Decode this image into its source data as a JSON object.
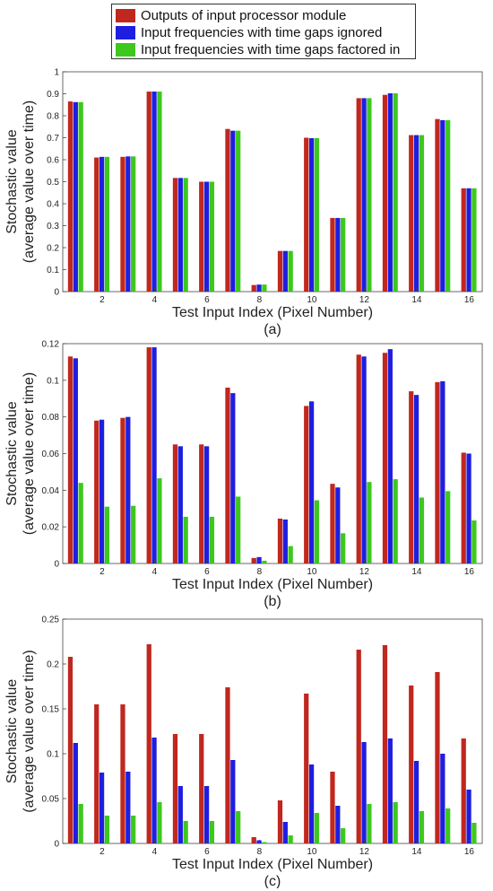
{
  "legend": {
    "entries": [
      {
        "label": "Outputs of input processor module",
        "color": "#c0271e"
      },
      {
        "label": "Input frequencies with time gaps ignored",
        "color": "#1e1ee0"
      },
      {
        "label": "Input frequencies with time gaps factored in",
        "color": "#3ec81e"
      }
    ]
  },
  "chart_data": [
    {
      "type": "bar",
      "panel_label": "(a)",
      "xlabel": "Test Input Index (Pixel Number)",
      "ylabel": [
        "Stochastic value",
        "(average value over time)"
      ],
      "ylim": [
        0,
        1
      ],
      "yticks": [
        "0",
        "0.1",
        "0.2",
        "0.3",
        "0.4",
        "0.5",
        "0.6",
        "0.7",
        "0.8",
        "0.9",
        "1"
      ],
      "xticks": [
        "2",
        "4",
        "6",
        "8",
        "10",
        "12",
        "14",
        "16"
      ],
      "categories": [
        1,
        2,
        3,
        4,
        5,
        6,
        7,
        8,
        9,
        10,
        11,
        12,
        13,
        14,
        15,
        16
      ],
      "series": [
        {
          "name": "Outputs of input processor module",
          "values": [
            0.865,
            0.61,
            0.613,
            0.91,
            0.517,
            0.5,
            0.74,
            0.03,
            0.185,
            0.7,
            0.335,
            0.88,
            0.895,
            0.712,
            0.785,
            0.47
          ]
        },
        {
          "name": "Input frequencies with time gaps ignored",
          "values": [
            0.862,
            0.613,
            0.615,
            0.91,
            0.517,
            0.5,
            0.732,
            0.032,
            0.185,
            0.698,
            0.335,
            0.88,
            0.902,
            0.712,
            0.78,
            0.47
          ]
        },
        {
          "name": "Input frequencies with time gaps factored in",
          "values": [
            0.862,
            0.613,
            0.615,
            0.91,
            0.517,
            0.5,
            0.732,
            0.032,
            0.185,
            0.698,
            0.335,
            0.88,
            0.902,
            0.712,
            0.78,
            0.47
          ]
        }
      ]
    },
    {
      "type": "bar",
      "panel_label": "(b)",
      "xlabel": "Test Input Index (Pixel Number)",
      "ylabel": [
        "Stochastic value",
        "(average value over time)"
      ],
      "ylim": [
        0,
        0.12
      ],
      "yticks": [
        "0",
        "0.02",
        "0.04",
        "0.06",
        "0.08",
        "0.1",
        "0.12"
      ],
      "xticks": [
        "2",
        "4",
        "6",
        "8",
        "10",
        "12",
        "14",
        "16"
      ],
      "categories": [
        1,
        2,
        3,
        4,
        5,
        6,
        7,
        8,
        9,
        10,
        11,
        12,
        13,
        14,
        15,
        16
      ],
      "series": [
        {
          "name": "Outputs of input processor module",
          "values": [
            0.113,
            0.078,
            0.0795,
            0.118,
            0.065,
            0.065,
            0.096,
            0.003,
            0.0245,
            0.086,
            0.0435,
            0.114,
            0.115,
            0.094,
            0.099,
            0.0605
          ]
        },
        {
          "name": "Input frequencies with time gaps ignored",
          "values": [
            0.112,
            0.0785,
            0.08,
            0.118,
            0.064,
            0.064,
            0.093,
            0.0035,
            0.024,
            0.0885,
            0.0415,
            0.113,
            0.117,
            0.092,
            0.0995,
            0.06
          ]
        },
        {
          "name": "Input frequencies with time gaps factored in",
          "values": [
            0.044,
            0.031,
            0.0315,
            0.0465,
            0.0255,
            0.0255,
            0.0365,
            0.0015,
            0.0095,
            0.0345,
            0.0165,
            0.0445,
            0.046,
            0.036,
            0.0395,
            0.0235
          ]
        }
      ]
    },
    {
      "type": "bar",
      "panel_label": "(c)",
      "xlabel": "Test Input Index (Pixel Number)",
      "ylabel": [
        "Stochastic value",
        "(average value over time)"
      ],
      "ylim": [
        0,
        0.25
      ],
      "yticks": [
        "0",
        "0.05",
        "0.1",
        "0.15",
        "0.2",
        "0.25"
      ],
      "xticks": [
        "2",
        "4",
        "6",
        "8",
        "10",
        "12",
        "14",
        "16"
      ],
      "categories": [
        1,
        2,
        3,
        4,
        5,
        6,
        7,
        8,
        9,
        10,
        11,
        12,
        13,
        14,
        15,
        16
      ],
      "series": [
        {
          "name": "Outputs of input processor module",
          "values": [
            0.208,
            0.155,
            0.155,
            0.222,
            0.122,
            0.122,
            0.174,
            0.007,
            0.048,
            0.167,
            0.08,
            0.216,
            0.221,
            0.176,
            0.191,
            0.117
          ]
        },
        {
          "name": "Input frequencies with time gaps ignored",
          "values": [
            0.112,
            0.079,
            0.08,
            0.118,
            0.064,
            0.064,
            0.093,
            0.0035,
            0.024,
            0.088,
            0.042,
            0.113,
            0.117,
            0.092,
            0.1,
            0.06
          ]
        },
        {
          "name": "Input frequencies with time gaps factored in",
          "values": [
            0.044,
            0.031,
            0.031,
            0.046,
            0.025,
            0.025,
            0.036,
            0.0015,
            0.009,
            0.034,
            0.017,
            0.044,
            0.046,
            0.036,
            0.039,
            0.023
          ]
        }
      ]
    }
  ]
}
